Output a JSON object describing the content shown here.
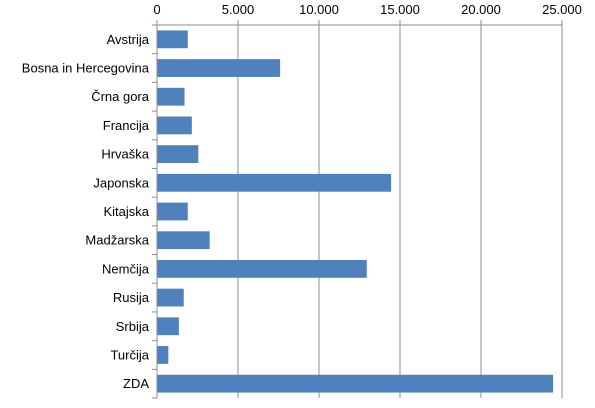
{
  "chart_data": {
    "type": "bar",
    "orientation": "horizontal",
    "categories": [
      "Avstrija",
      "Bosna in Hercegovina",
      "Črna gora",
      "Francija",
      "Hrvaška",
      "Japonska",
      "Kitajska",
      "Madžarska",
      "Nemčija",
      "Rusija",
      "Srbija",
      "Turčija",
      "ZDA"
    ],
    "values": [
      1900,
      7600,
      1700,
      2150,
      2550,
      14450,
      1900,
      3250,
      12950,
      1650,
      1350,
      700,
      24450
    ],
    "xlim": [
      0,
      25000
    ],
    "x_ticks": [
      0,
      5000,
      10000,
      15000,
      20000,
      25000
    ],
    "x_tick_labels": [
      "0",
      "5.000",
      "10.000",
      "15.000",
      "20.000",
      "25.000"
    ],
    "x_axis_position": "top",
    "grid": "vertical",
    "bar_color": "#4F81BD",
    "title": "",
    "xlabel": "",
    "ylabel": ""
  }
}
